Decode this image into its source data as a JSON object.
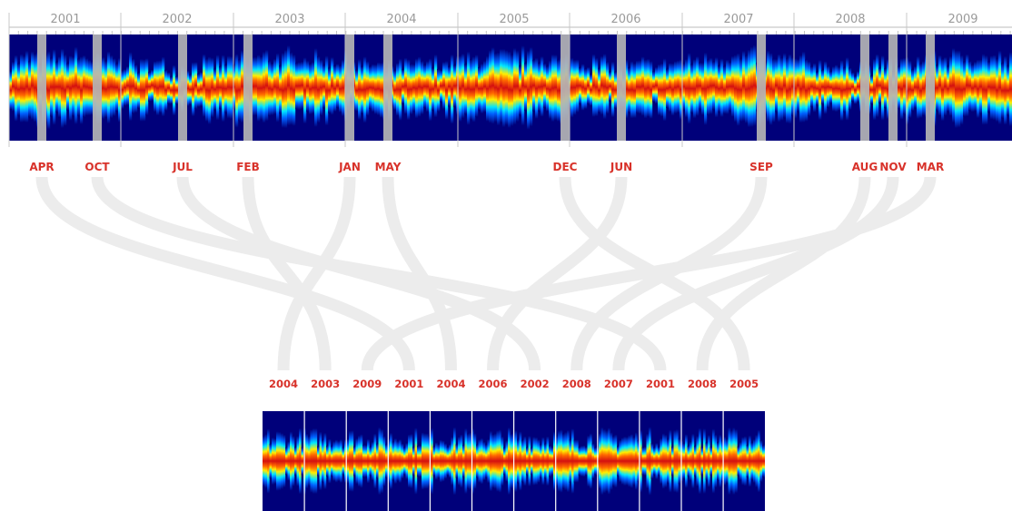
{
  "timeline": {
    "years": [
      "2001",
      "2002",
      "2003",
      "2004",
      "2005",
      "2006",
      "2007",
      "2008",
      "2009"
    ],
    "months": [
      "APR",
      "OCT",
      "JUL",
      "FEB",
      "JAN",
      "MAY",
      "DEC",
      "JUN",
      "SEP",
      "AUG",
      "NOV",
      "MAR"
    ]
  },
  "excerpts": {
    "years": [
      "2004",
      "2003",
      "2009",
      "2001",
      "2004",
      "2006",
      "2002",
      "2008",
      "2007",
      "2001",
      "2008",
      "2005"
    ]
  },
  "links": [
    {
      "from": 0,
      "to": 3
    },
    {
      "from": 1,
      "to": 9
    },
    {
      "from": 2,
      "to": 6
    },
    {
      "from": 3,
      "to": 1
    },
    {
      "from": 4,
      "to": 0
    },
    {
      "from": 5,
      "to": 4
    },
    {
      "from": 6,
      "to": 11
    },
    {
      "from": 7,
      "to": 5
    },
    {
      "from": 8,
      "to": 7
    },
    {
      "from": 9,
      "to": 10
    },
    {
      "from": 10,
      "to": 8
    },
    {
      "from": 11,
      "to": 2
    }
  ],
  "colors": {
    "background": "#00007a",
    "year_text": "#9a9a9a",
    "label_red": "#d8322a",
    "ribbon": "#ececec",
    "marker": "#b4b4b4"
  }
}
